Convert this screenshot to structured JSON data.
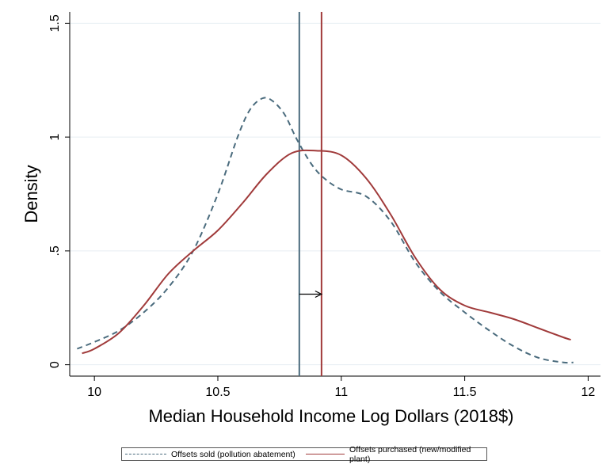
{
  "chart_data": {
    "type": "line",
    "xlabel": "Median Household Income Log Dollars (2018$)",
    "ylabel": "Density",
    "xlim": [
      9.9,
      12.05
    ],
    "ylim": [
      -0.05,
      1.55
    ],
    "x_ticks": [
      {
        "value": 10,
        "label": "10"
      },
      {
        "value": 10.5,
        "label": "10.5"
      },
      {
        "value": 11,
        "label": "11"
      },
      {
        "value": 11.5,
        "label": "11.5"
      },
      {
        "value": 12,
        "label": "12"
      }
    ],
    "y_ticks": [
      {
        "value": 0,
        "label": "0"
      },
      {
        "value": 0.5,
        "label": ".5"
      },
      {
        "value": 1,
        "label": "1"
      },
      {
        "value": 1.5,
        "label": "1.5"
      }
    ],
    "grid": true,
    "legend_position": "bottom",
    "series": [
      {
        "name": "Offsets sold (pollution abatement)",
        "color": "#4a6b7d",
        "dash": "dashed",
        "x": [
          9.93,
          10.0,
          10.1,
          10.2,
          10.3,
          10.4,
          10.5,
          10.58,
          10.63,
          10.68,
          10.72,
          10.77,
          10.82,
          10.88,
          10.93,
          11.0,
          11.1,
          11.2,
          11.3,
          11.4,
          11.5,
          11.6,
          11.7,
          11.8,
          11.9,
          11.94
        ],
        "y": [
          0.07,
          0.1,
          0.15,
          0.23,
          0.34,
          0.5,
          0.75,
          1.0,
          1.12,
          1.17,
          1.16,
          1.1,
          0.99,
          0.88,
          0.82,
          0.77,
          0.74,
          0.63,
          0.45,
          0.32,
          0.23,
          0.15,
          0.08,
          0.03,
          0.01,
          0.01
        ]
      },
      {
        "name": "Offsets purchased (new/modified plant)",
        "color": "#a03a3a",
        "dash": "solid",
        "x": [
          9.95,
          10.0,
          10.1,
          10.2,
          10.3,
          10.4,
          10.5,
          10.6,
          10.7,
          10.8,
          10.9,
          11.0,
          11.1,
          11.2,
          11.3,
          11.4,
          11.5,
          11.6,
          11.7,
          11.8,
          11.9,
          11.93
        ],
        "y": [
          0.05,
          0.07,
          0.14,
          0.26,
          0.4,
          0.5,
          0.59,
          0.71,
          0.84,
          0.93,
          0.94,
          0.92,
          0.82,
          0.66,
          0.47,
          0.33,
          0.26,
          0.23,
          0.2,
          0.16,
          0.12,
          0.11
        ]
      }
    ],
    "reference_lines": [
      {
        "x": 10.83,
        "color": "#4a6b7d"
      },
      {
        "x": 10.92,
        "color": "#a03a3a"
      }
    ],
    "arrow": {
      "from_x": 10.83,
      "to_x": 10.92,
      "y": 0.31
    }
  },
  "legend": {
    "item1": "Offsets sold (pollution abatement)",
    "item2": "Offsets purchased (new/modified plant)"
  }
}
